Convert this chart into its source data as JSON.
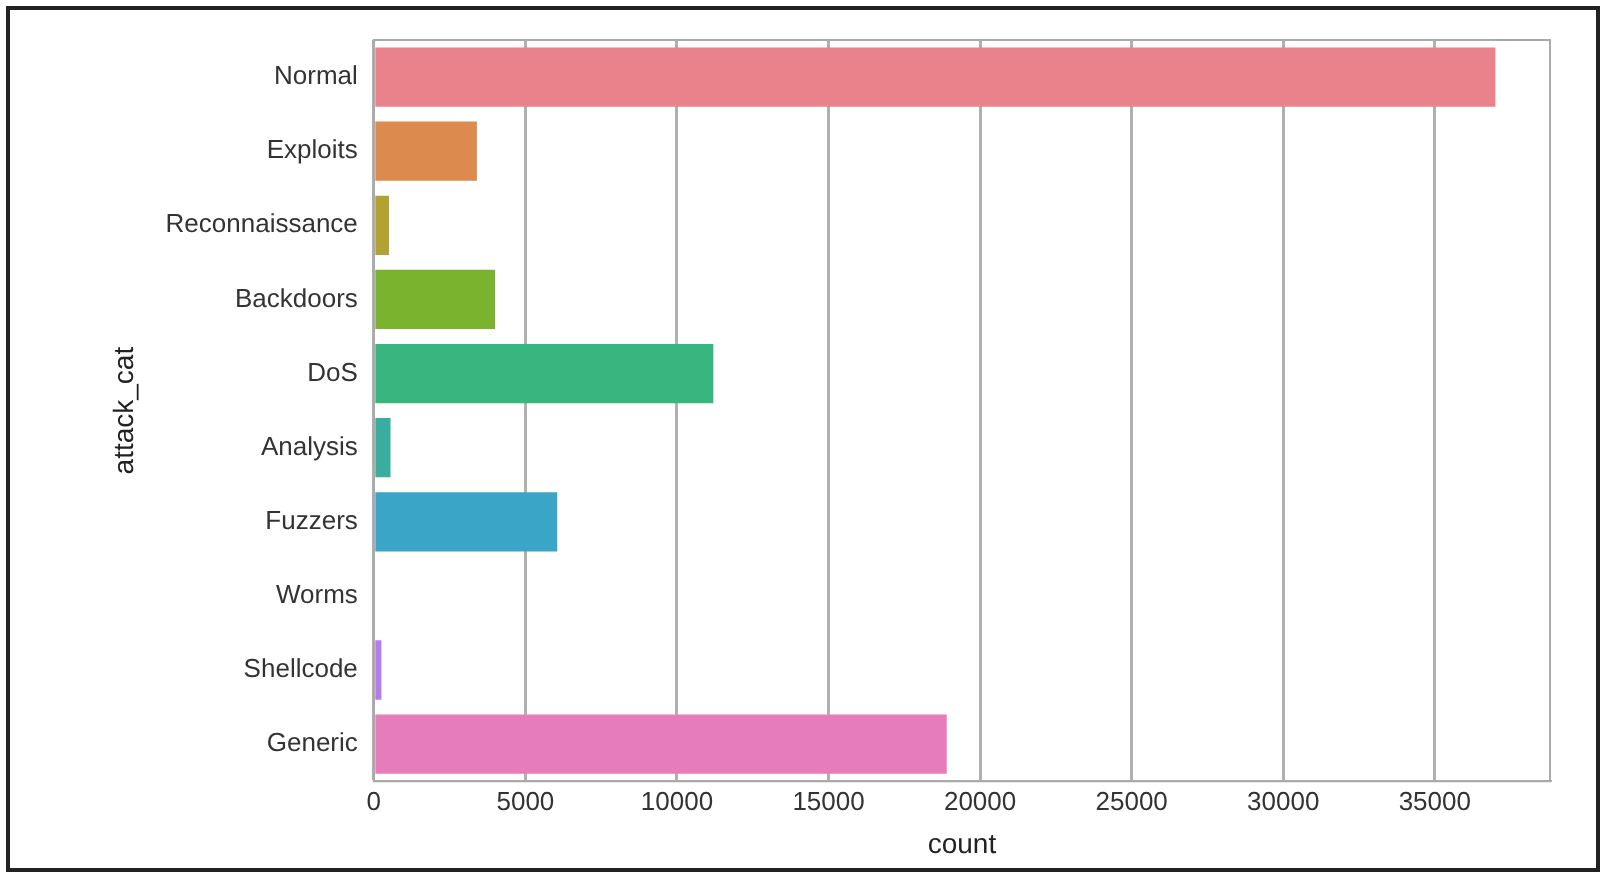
{
  "chart_data": {
    "type": "bar",
    "orientation": "horizontal",
    "xlabel": "count",
    "ylabel": "attack_cat",
    "categories": [
      "Normal",
      "Exploits",
      "Reconnaissance",
      "Backdoors",
      "DoS",
      "Analysis",
      "Fuzzers",
      "Worms",
      "Shellcode",
      "Generic"
    ],
    "values": [
      37000,
      3400,
      500,
      4000,
      11200,
      550,
      6050,
      null,
      250,
      18900
    ],
    "colors": [
      "#ea828c",
      "#dd8a4e",
      "#b3a232",
      "#7ab32e",
      "#37b67f",
      "#39ad9e",
      "#3ba5c8",
      "#8b95e6",
      "#b47de9",
      "#e67cba"
    ],
    "xlim": [
      0,
      38800
    ],
    "xticks": [
      0,
      5000,
      10000,
      15000,
      20000,
      25000,
      30000,
      35000
    ],
    "grid": "x"
  }
}
